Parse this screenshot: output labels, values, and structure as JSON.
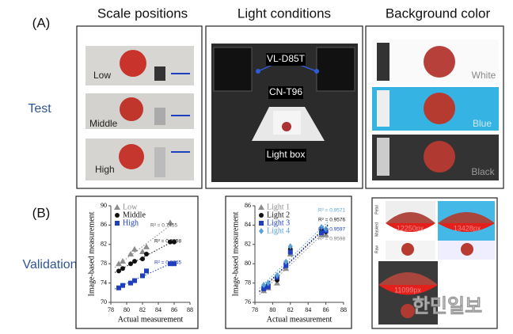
{
  "panel_a": {
    "label": "(A)",
    "columns": [
      "Scale positions",
      "Light conditions",
      "Background color"
    ],
    "row_label": "Test",
    "scale_labels": [
      "Low",
      "Middle",
      "High"
    ],
    "light_labels": [
      "VL-D85T",
      "CN-T96",
      "Light box"
    ],
    "background_labels": [
      "White",
      "Blue",
      "Black"
    ]
  },
  "panel_b": {
    "label": "(B)",
    "row_label": "Validation",
    "image_labels": [
      "Petal",
      "Masked",
      "Raw"
    ],
    "pixel_counts": [
      "12250px",
      "13428px",
      "11099px"
    ]
  },
  "watermark": "한민일보",
  "chart_data": [
    {
      "type": "scatter",
      "x_label": "Actual measurement",
      "y_label": "Image-based measurement",
      "xlim": [
        78,
        88
      ],
      "xticks": [
        78,
        80,
        82,
        84,
        86,
        88
      ],
      "ylim": [
        70,
        90
      ],
      "yticks": [
        70,
        74,
        78,
        82,
        86,
        90
      ],
      "legend": "top-left",
      "trend_lines": true,
      "series": [
        {
          "name": "Low",
          "color": "#8c8c8c",
          "marker": "triangle",
          "x": [
            79,
            79.5,
            80.5,
            81,
            82,
            82.5,
            85.5
          ],
          "values": [
            78,
            78.5,
            80,
            81,
            80.5,
            81.5,
            86.5
          ]
        },
        {
          "name": "Middle",
          "color": "#111111",
          "marker": "circle",
          "x": [
            79,
            79.5,
            80.5,
            81,
            82,
            82.5,
            85.5,
            86
          ],
          "values": [
            76.5,
            77,
            78,
            78.5,
            79,
            80,
            82.5,
            82.5
          ]
        },
        {
          "name": "High",
          "color": "#1f3fbf",
          "marker": "square",
          "x": [
            79,
            79.5,
            80.5,
            81,
            82,
            82.5,
            85.5,
            86
          ],
          "values": [
            73,
            73.5,
            74,
            74.5,
            75.5,
            76.5,
            78,
            78
          ]
        }
      ],
      "annotations": [
        {
          "text": "R² = 0.7455",
          "color": "#555555"
        },
        {
          "text": "R² = 0.9598",
          "color": "#111111"
        },
        {
          "text": "R² = 0.9645",
          "color": "#1f3fbf"
        }
      ]
    },
    {
      "type": "scatter",
      "x_label": "Actual measurement",
      "y_label": "Image-based measurement",
      "xlim": [
        78,
        88
      ],
      "xticks": [
        78,
        80,
        82,
        84,
        86,
        88
      ],
      "ylim": [
        76,
        86
      ],
      "yticks": [
        76,
        78,
        80,
        82,
        84,
        86
      ],
      "legend": "top-left",
      "trend_lines": true,
      "series": [
        {
          "name": "Light 1",
          "color": "#8c8c8c",
          "marker": "triangle",
          "x": [
            79,
            79.5,
            80.5,
            81.5,
            82,
            85.5,
            86
          ],
          "values": [
            77.2,
            77.5,
            78,
            79.5,
            81,
            83,
            83
          ]
        },
        {
          "name": "Light 2",
          "color": "#111111",
          "marker": "circle",
          "x": [
            79,
            79.5,
            80.5,
            81.5,
            82,
            85.5,
            86
          ],
          "values": [
            77.5,
            77.8,
            78.3,
            80,
            81.5,
            83.5,
            83.3
          ]
        },
        {
          "name": "Light 3",
          "color": "#1f3fbf",
          "marker": "square",
          "x": [
            79,
            79.5,
            80.5,
            81.5,
            82,
            85.5,
            86
          ],
          "values": [
            77.4,
            77.6,
            78.6,
            79.8,
            81.2,
            83.2,
            83.4
          ]
        },
        {
          "name": "Light 4",
          "color": "#5aa0d8",
          "marker": "diamond",
          "x": [
            79,
            79.5,
            80.5,
            81.5,
            82,
            85.5,
            86
          ],
          "values": [
            77.8,
            78,
            78.8,
            80.2,
            81.8,
            83.8,
            83.6
          ]
        }
      ],
      "annotations": [
        {
          "text": "R² = 0.9571",
          "color": "#5aa0d8"
        },
        {
          "text": "R² = 0.9576",
          "color": "#111111"
        },
        {
          "text": "R² = 0.9597",
          "color": "#1f3fbf"
        },
        {
          "text": "R² = 0.9598",
          "color": "#777777"
        }
      ]
    }
  ]
}
